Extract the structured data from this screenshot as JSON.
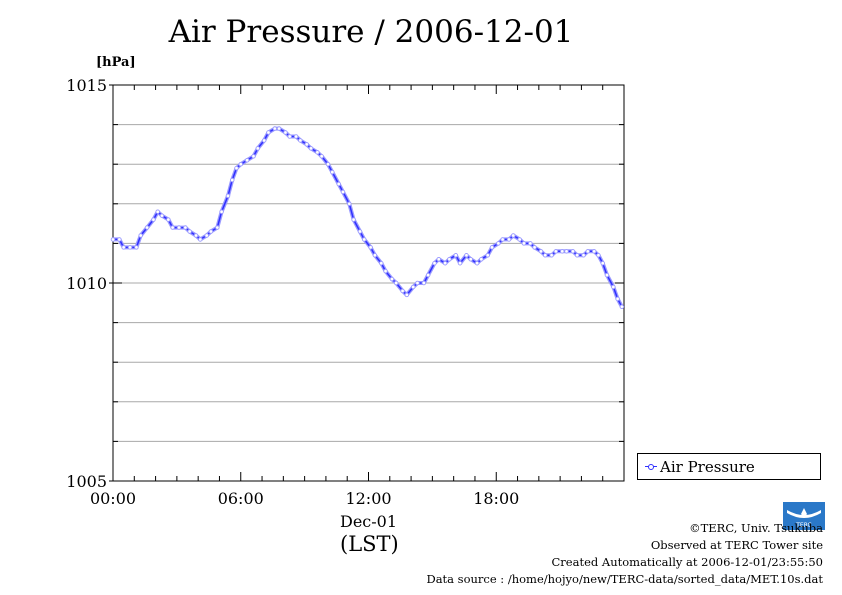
{
  "chart_data": {
    "type": "line",
    "title": "Air Pressure / 2006-12-01",
    "ylabel": "[hPa]",
    "xlabel": "(LST)",
    "x_category_label": "Dec-01",
    "ylim": [
      1005,
      1015
    ],
    "xlim": [
      0,
      24
    ],
    "x_unit": "hours",
    "y_ticks": [
      1005,
      1010,
      1015
    ],
    "y_minor_step": 1,
    "x_ticks": [
      {
        "value": 0,
        "label": "00:00"
      },
      {
        "value": 6,
        "label": "06:00"
      },
      {
        "value": 12,
        "label": "12:00"
      },
      {
        "value": 18,
        "label": "18:00"
      }
    ],
    "grid": true,
    "legend_position": "right",
    "series": [
      {
        "name": "Air Pressure",
        "color": "#3030ff",
        "marker_color": "#9a9aff",
        "points": [
          [
            0.0,
            1011.1
          ],
          [
            0.3,
            1011.1
          ],
          [
            0.5,
            1010.9
          ],
          [
            0.8,
            1010.9
          ],
          [
            1.1,
            1010.9
          ],
          [
            1.3,
            1011.2
          ],
          [
            1.6,
            1011.4
          ],
          [
            1.9,
            1011.6
          ],
          [
            2.1,
            1011.8
          ],
          [
            2.3,
            1011.7
          ],
          [
            2.6,
            1011.6
          ],
          [
            2.8,
            1011.4
          ],
          [
            3.1,
            1011.4
          ],
          [
            3.4,
            1011.4
          ],
          [
            3.6,
            1011.3
          ],
          [
            3.9,
            1011.2
          ],
          [
            4.1,
            1011.1
          ],
          [
            4.4,
            1011.2
          ],
          [
            4.6,
            1011.3
          ],
          [
            4.9,
            1011.4
          ],
          [
            5.1,
            1011.8
          ],
          [
            5.4,
            1012.2
          ],
          [
            5.6,
            1012.6
          ],
          [
            5.8,
            1012.9
          ],
          [
            6.0,
            1013.0
          ],
          [
            6.3,
            1013.1
          ],
          [
            6.6,
            1013.2
          ],
          [
            6.8,
            1013.4
          ],
          [
            7.1,
            1013.6
          ],
          [
            7.3,
            1013.8
          ],
          [
            7.6,
            1013.9
          ],
          [
            7.8,
            1013.9
          ],
          [
            8.1,
            1013.8
          ],
          [
            8.3,
            1013.7
          ],
          [
            8.6,
            1013.7
          ],
          [
            8.8,
            1013.6
          ],
          [
            9.1,
            1013.5
          ],
          [
            9.3,
            1013.4
          ],
          [
            9.6,
            1013.3
          ],
          [
            9.8,
            1013.2
          ],
          [
            10.1,
            1013.0
          ],
          [
            10.3,
            1012.8
          ],
          [
            10.6,
            1012.5
          ],
          [
            10.8,
            1012.3
          ],
          [
            11.1,
            1012.0
          ],
          [
            11.3,
            1011.6
          ],
          [
            11.6,
            1011.3
          ],
          [
            11.8,
            1011.1
          ],
          [
            12.1,
            1010.9
          ],
          [
            12.3,
            1010.7
          ],
          [
            12.6,
            1010.5
          ],
          [
            12.8,
            1010.3
          ],
          [
            13.1,
            1010.1
          ],
          [
            13.3,
            1010.0
          ],
          [
            13.6,
            1009.8
          ],
          [
            13.8,
            1009.7
          ],
          [
            14.1,
            1009.9
          ],
          [
            14.3,
            1010.0
          ],
          [
            14.6,
            1010.0
          ],
          [
            14.8,
            1010.2
          ],
          [
            15.1,
            1010.5
          ],
          [
            15.3,
            1010.6
          ],
          [
            15.6,
            1010.5
          ],
          [
            15.8,
            1010.6
          ],
          [
            16.1,
            1010.7
          ],
          [
            16.3,
            1010.5
          ],
          [
            16.6,
            1010.7
          ],
          [
            16.8,
            1010.6
          ],
          [
            17.1,
            1010.5
          ],
          [
            17.3,
            1010.6
          ],
          [
            17.6,
            1010.7
          ],
          [
            17.8,
            1010.9
          ],
          [
            18.1,
            1011.0
          ],
          [
            18.3,
            1011.1
          ],
          [
            18.6,
            1011.1
          ],
          [
            18.8,
            1011.2
          ],
          [
            19.1,
            1011.1
          ],
          [
            19.3,
            1011.0
          ],
          [
            19.6,
            1011.0
          ],
          [
            19.8,
            1010.9
          ],
          [
            20.1,
            1010.8
          ],
          [
            20.3,
            1010.7
          ],
          [
            20.6,
            1010.7
          ],
          [
            20.8,
            1010.8
          ],
          [
            21.1,
            1010.8
          ],
          [
            21.3,
            1010.8
          ],
          [
            21.6,
            1010.8
          ],
          [
            21.8,
            1010.7
          ],
          [
            22.1,
            1010.7
          ],
          [
            22.3,
            1010.8
          ],
          [
            22.6,
            1010.8
          ],
          [
            22.8,
            1010.7
          ],
          [
            23.0,
            1010.5
          ],
          [
            23.2,
            1010.2
          ],
          [
            23.5,
            1009.9
          ],
          [
            23.7,
            1009.6
          ],
          [
            23.9,
            1009.4
          ]
        ]
      }
    ]
  },
  "credits": {
    "copyright": "©TERC, Univ. Tsukuba",
    "observed": "Observed at TERC Tower site",
    "created": "Created Automatically at 2006-12-01/23:55:50",
    "source": "Data source : /home/hojyo/new/TERC-data/sorted_data/MET.10s.dat",
    "logo_text": "TERC"
  }
}
